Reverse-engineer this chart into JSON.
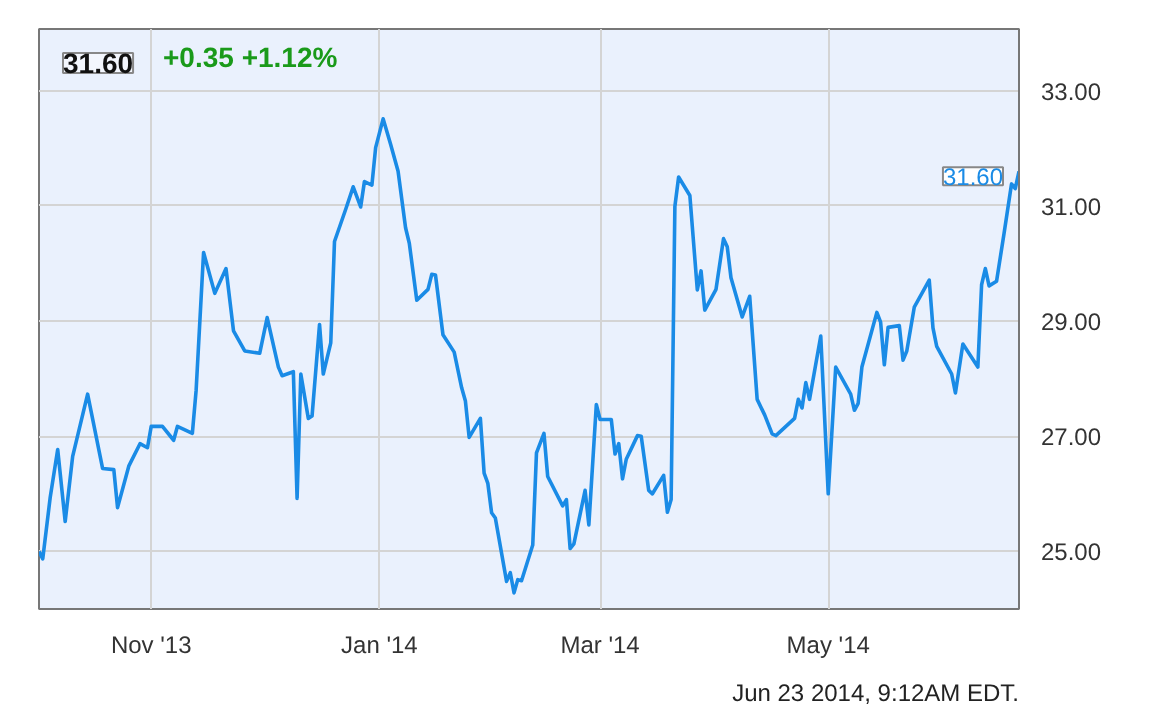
{
  "chart_data": {
    "type": "line",
    "title": "31.60",
    "subtitle": "+0.35 +1.12%",
    "annotations": [
      {
        "text": "31.60",
        "x": "2014-06-21",
        "y": 31.6
      },
      "Jun 23 2014, 9:12AM EDT."
    ],
    "x": [
      "2013-10-02",
      "2013-10-03",
      "2013-10-05",
      "2013-10-07",
      "2013-10-09",
      "2013-10-11",
      "2013-10-15",
      "2013-10-19",
      "2013-10-22",
      "2013-10-23",
      "2013-10-26",
      "2013-10-29",
      "2013-10-31",
      "2013-11-01",
      "2013-11-04",
      "2013-11-07",
      "2013-11-08",
      "2013-11-12",
      "2013-11-13",
      "2013-11-15",
      "2013-11-18",
      "2013-11-21",
      "2013-11-23",
      "2013-11-26",
      "2013-11-30",
      "2013-12-02",
      "2013-12-05",
      "2013-12-06",
      "2013-12-09",
      "2013-12-10",
      "2013-12-11",
      "2013-12-13",
      "2013-12-14",
      "2013-12-16",
      "2013-12-17",
      "2013-12-19",
      "2013-12-20",
      "2013-12-23",
      "2013-12-25",
      "2013-12-27",
      "2013-12-28",
      "2013-12-30",
      "2013-12-31",
      "2014-01-02",
      "2014-01-04",
      "2014-01-06",
      "2014-01-08",
      "2014-01-09",
      "2014-01-11",
      "2014-01-14",
      "2014-01-15",
      "2014-01-16",
      "2014-01-18",
      "2014-01-21",
      "2014-01-23",
      "2014-01-24",
      "2014-01-25",
      "2014-01-28",
      "2014-01-29",
      "2014-01-30",
      "2014-01-31",
      "2014-02-01",
      "2014-02-04",
      "2014-02-05",
      "2014-02-06",
      "2014-02-07",
      "2014-02-08",
      "2014-02-11",
      "2014-02-12",
      "2014-02-14",
      "2014-02-15",
      "2014-02-19",
      "2014-02-20",
      "2014-02-21",
      "2014-02-22",
      "2014-02-25",
      "2014-02-26",
      "2014-02-28",
      "2014-03-01",
      "2014-03-04",
      "2014-03-05",
      "2014-03-06",
      "2014-03-07",
      "2014-03-08",
      "2014-03-11",
      "2014-03-12",
      "2014-03-14",
      "2014-03-15",
      "2014-03-18",
      "2014-03-19",
      "2014-03-20",
      "2014-03-21",
      "2014-03-22",
      "2014-03-25",
      "2014-03-27",
      "2014-03-28",
      "2014-03-29",
      "2014-04-01",
      "2014-04-03",
      "2014-04-04",
      "2014-04-05",
      "2014-04-08",
      "2014-04-10",
      "2014-04-12",
      "2014-04-14",
      "2014-04-16",
      "2014-04-17",
      "2014-04-22",
      "2014-04-23",
      "2014-04-24",
      "2014-04-25",
      "2014-04-26",
      "2014-04-29",
      "2014-05-01",
      "2014-05-03",
      "2014-05-07",
      "2014-05-08",
      "2014-05-09",
      "2014-05-10",
      "2014-05-14",
      "2014-05-15",
      "2014-05-16",
      "2014-05-17",
      "2014-05-20",
      "2014-05-21",
      "2014-05-22",
      "2014-05-24",
      "2014-05-28",
      "2014-05-29",
      "2014-05-30",
      "2014-06-03",
      "2014-06-04",
      "2014-06-06",
      "2014-06-10",
      "2014-06-11",
      "2014-06-12",
      "2014-06-13",
      "2014-06-15",
      "2014-06-17",
      "2014-06-19",
      "2014-06-20",
      "2014-06-21"
    ],
    "series": [
      {
        "color": "#1a8be6",
        "values": [
          25.0,
          24.87,
          25.94,
          26.77,
          25.52,
          26.65,
          27.73,
          26.44,
          26.42,
          25.76,
          26.48,
          26.87,
          26.8,
          27.17,
          27.17,
          26.93,
          27.17,
          27.05,
          27.79,
          30.19,
          29.48,
          29.91,
          28.83,
          28.48,
          28.44,
          29.06,
          28.2,
          28.05,
          28.12,
          25.92,
          28.08,
          27.31,
          27.35,
          28.94,
          28.08,
          28.62,
          30.38,
          30.94,
          31.33,
          30.98,
          31.42,
          31.36,
          32.01,
          32.51,
          32.07,
          31.6,
          30.62,
          30.35,
          29.36,
          29.55,
          29.81,
          29.8,
          28.76,
          28.46,
          27.84,
          27.61,
          26.98,
          27.31,
          26.36,
          26.18,
          25.67,
          25.58,
          24.48,
          24.63,
          24.28,
          24.51,
          24.49,
          25.11,
          26.71,
          27.05,
          26.3,
          25.79,
          25.9,
          25.05,
          25.13,
          26.06,
          25.46,
          27.55,
          27.29,
          27.29,
          26.69,
          26.87,
          26.26,
          26.6,
          27.01,
          27.0,
          26.06,
          26.0,
          26.32,
          25.68,
          25.9,
          30.99,
          31.5,
          31.18,
          29.54,
          29.87,
          29.19,
          29.55,
          30.43,
          30.29,
          29.75,
          29.07,
          29.43,
          27.64,
          27.37,
          27.04,
          27.01,
          27.31,
          27.64,
          27.49,
          27.93,
          27.64,
          28.74,
          26.0,
          28.2,
          27.73,
          27.45,
          27.57,
          28.2,
          29.15,
          28.98,
          28.24,
          28.89,
          28.92,
          28.32,
          28.48,
          29.24,
          29.71,
          28.88,
          28.56,
          28.08,
          27.75,
          28.6,
          28.2,
          29.63,
          29.91,
          29.61,
          29.69,
          30.52,
          31.38,
          31.3,
          31.6
        ]
      }
    ],
    "xlim": [
      "2013-10-02",
      "2014-06-21"
    ],
    "xticks": [
      {
        "value": "2013-11-01",
        "label": "Nov '13"
      },
      {
        "value": "2014-01-01",
        "label": "Jan '14"
      },
      {
        "value": "2014-03-01",
        "label": "Mar '14"
      },
      {
        "value": "2014-05-01",
        "label": "May '14"
      }
    ],
    "ylim": [
      24.0,
      34.07
    ],
    "yticks": [
      {
        "value": 25,
        "label": "25.00"
      },
      {
        "value": 27,
        "label": "27.00"
      },
      {
        "value": 29,
        "label": "29.00"
      },
      {
        "value": 31,
        "label": "31.00"
      },
      {
        "value": 33,
        "label": "33.00"
      }
    ],
    "grid": true,
    "marker": "none",
    "line_style": "solid"
  }
}
